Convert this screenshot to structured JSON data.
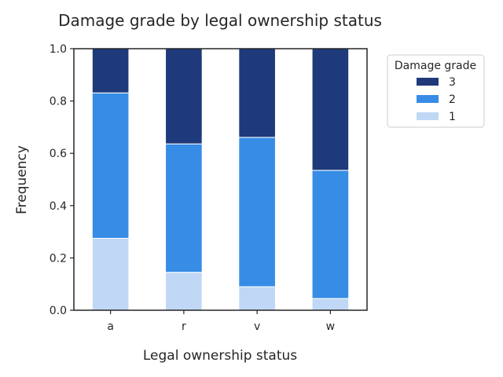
{
  "chart_data": {
    "type": "bar",
    "stacked": true,
    "title": "Damage grade by legal ownership status",
    "xlabel": "Legal ownership status",
    "ylabel": "Frequency",
    "categories": [
      "a",
      "r",
      "v",
      "w"
    ],
    "ylim": [
      0,
      1.0
    ],
    "yticks": [
      "0.0",
      "0.2",
      "0.4",
      "0.6",
      "0.8",
      "1.0"
    ],
    "grid": false,
    "legend": {
      "title": "Damage grade",
      "placement": "outside-top-right"
    },
    "series": [
      {
        "name": "1",
        "color": "#c0d8f5",
        "values": [
          0.275,
          0.145,
          0.09,
          0.045
        ]
      },
      {
        "name": "2",
        "color": "#378ce6",
        "values": [
          0.556,
          0.491,
          0.571,
          0.49
        ]
      },
      {
        "name": "3",
        "color": "#1f3a7b",
        "values": [
          0.169,
          0.364,
          0.339,
          0.465
        ]
      }
    ],
    "legend_order": [
      "3",
      "2",
      "1"
    ]
  }
}
